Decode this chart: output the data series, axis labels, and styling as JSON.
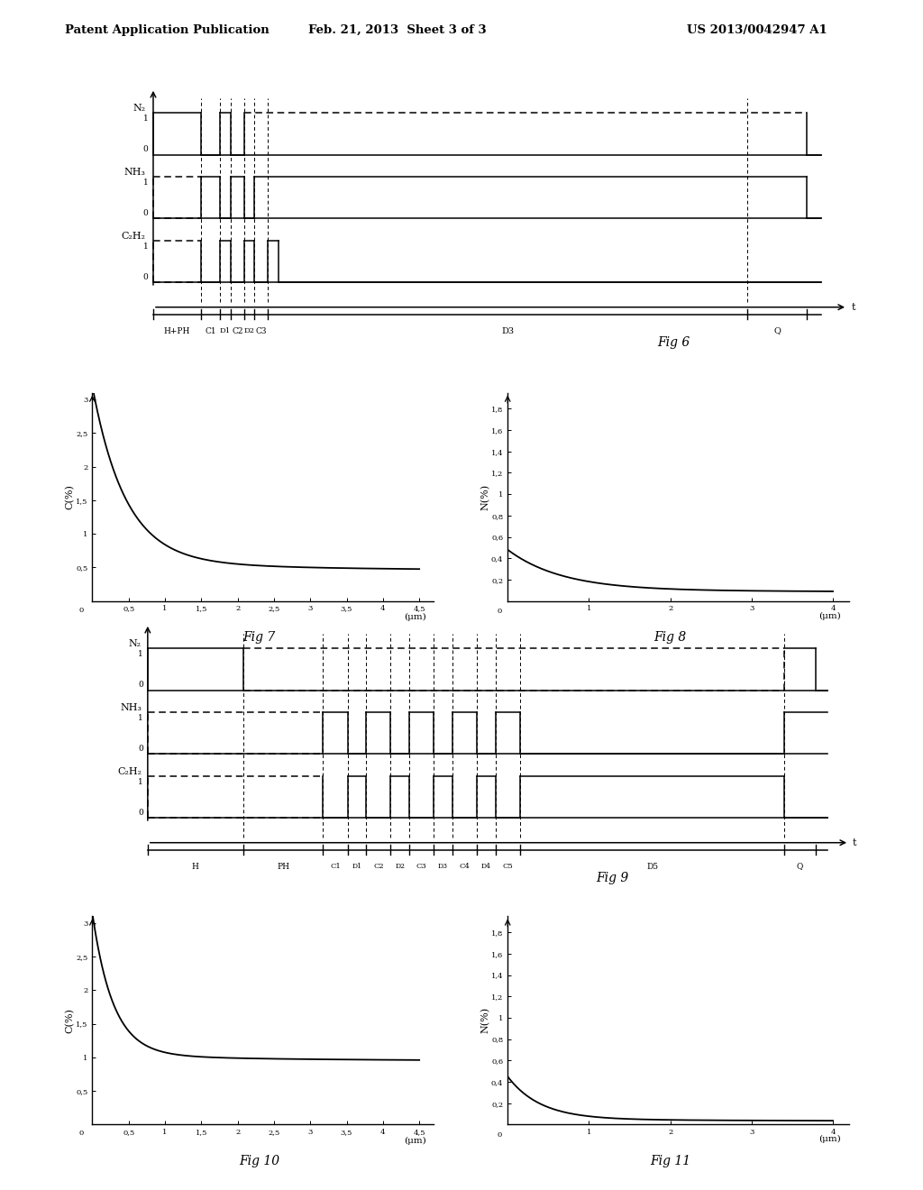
{
  "header_left": "Patent Application Publication",
  "header_mid": "Feb. 21, 2013  Sheet 3 of 3",
  "header_right": "US 2013/0042947 A1",
  "fig6_label": "Fig 6",
  "fig7_label": "Fig 7",
  "fig8_label": "Fig 8",
  "fig9_label": "Fig 9",
  "fig10_label": "Fig 10",
  "fig11_label": "Fig 11",
  "background": "#ffffff",
  "lc": "#000000"
}
